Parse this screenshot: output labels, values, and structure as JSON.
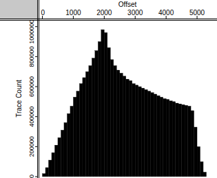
{
  "chart_data": {
    "type": "histogram",
    "x_label": "Offset",
    "y_label": "Trace Count",
    "bins": [
      0,
      100,
      200,
      300,
      400,
      500,
      600,
      700,
      800,
      900,
      1000,
      1100,
      1200,
      1300,
      1400,
      1500,
      1600,
      1700,
      1800,
      1900,
      2000,
      2100,
      2200,
      2300,
      2400,
      2500,
      2600,
      2700,
      2800,
      2900,
      3000,
      3100,
      3200,
      3300,
      3400,
      3500,
      3600,
      3700,
      3800,
      3900,
      4000,
      4100,
      4200,
      4300,
      4400,
      4500,
      4600,
      4700,
      4800,
      4900,
      5000,
      5100,
      5200,
      5300
    ],
    "values": [
      20000,
      60000,
      110000,
      160000,
      210000,
      260000,
      310000,
      360000,
      420000,
      470000,
      530000,
      570000,
      620000,
      660000,
      700000,
      740000,
      790000,
      840000,
      900000,
      980000,
      960000,
      860000,
      780000,
      740000,
      710000,
      690000,
      670000,
      650000,
      640000,
      620000,
      610000,
      600000,
      590000,
      580000,
      570000,
      560000,
      550000,
      540000,
      530000,
      520000,
      515000,
      505000,
      500000,
      490000,
      485000,
      480000,
      475000,
      470000,
      440000,
      330000,
      200000,
      100000,
      30000
    ],
    "color": "#000000",
    "xlim": [
      -100,
      5600
    ],
    "ylim": [
      0,
      1040000
    ],
    "xticks": [
      0,
      1000,
      2000,
      3000,
      4000,
      5000
    ],
    "yticks": [
      0,
      200000,
      400000,
      600000,
      800000,
      1000000
    ]
  }
}
